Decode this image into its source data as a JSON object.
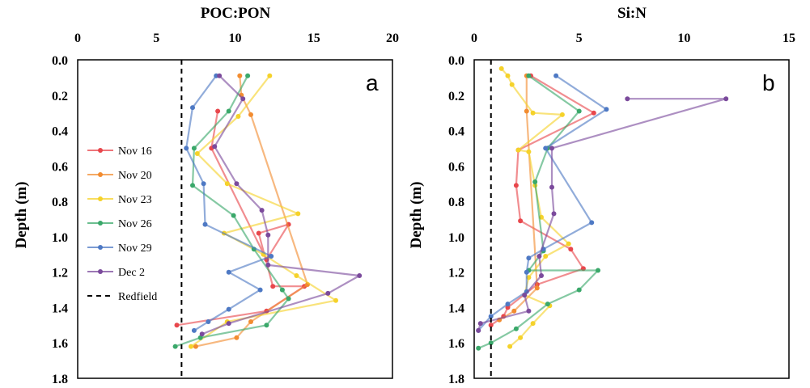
{
  "chart_data": [
    {
      "type": "line",
      "panel": "a",
      "title": "POC:PON",
      "xlabel": "",
      "ylabel": "Depth (m)",
      "x_axis_position": "top",
      "y_axis_inverted": true,
      "xlim": [
        0,
        20
      ],
      "ylim": [
        0,
        1.8
      ],
      "xticks": [
        "0",
        "5",
        "10",
        "15",
        "20"
      ],
      "yticks": [
        "0.0",
        "0.2",
        "0.4",
        "0.6",
        "0.8",
        "1.0",
        "1.2",
        "1.4",
        "1.6",
        "1.8"
      ],
      "grid": false,
      "legend": {
        "position": "left",
        "entries": [
          "Nov 16",
          "Nov 20",
          "Nov 23",
          "Nov 26",
          "Nov 29",
          "Dec 2",
          "Redfield"
        ]
      },
      "reference_line": {
        "name": "Redfield",
        "x": 6.6,
        "style": "dashed"
      },
      "series": [
        {
          "name": "Nov 16",
          "color": "#e8474c",
          "points": [
            [
              8.9,
              0.29
            ],
            [
              8.5,
              0.5
            ],
            [
              12.0,
              1.13
            ],
            [
              13.4,
              0.93
            ],
            [
              11.5,
              0.98
            ],
            [
              12.4,
              1.28
            ],
            [
              14.4,
              1.28
            ],
            [
              12.0,
              1.42
            ],
            [
              6.3,
              1.5
            ]
          ]
        },
        {
          "name": "Nov 20",
          "color": "#f28c30",
          "points": [
            [
              10.3,
              0.09
            ],
            [
              10.4,
              0.2
            ],
            [
              11.0,
              0.31
            ],
            [
              14.6,
              1.27
            ],
            [
              11.0,
              1.48
            ],
            [
              10.1,
              1.57
            ],
            [
              7.5,
              1.62
            ]
          ]
        },
        {
          "name": "Nov 23",
          "color": "#f5d22a",
          "points": [
            [
              12.2,
              0.09
            ],
            [
              10.2,
              0.32
            ],
            [
              7.6,
              0.53
            ],
            [
              9.5,
              0.7
            ],
            [
              14.0,
              0.87
            ],
            [
              9.3,
              0.98
            ],
            [
              11.8,
              1.1
            ],
            [
              13.9,
              1.22
            ],
            [
              16.4,
              1.36
            ],
            [
              9.5,
              1.48
            ],
            [
              7.2,
              1.62
            ]
          ]
        },
        {
          "name": "Nov 26",
          "color": "#3aa86a",
          "points": [
            [
              10.8,
              0.09
            ],
            [
              9.6,
              0.29
            ],
            [
              7.4,
              0.5
            ],
            [
              7.3,
              0.71
            ],
            [
              9.9,
              0.88
            ],
            [
              11.2,
              1.07
            ],
            [
              13.0,
              1.3
            ],
            [
              13.4,
              1.35
            ],
            [
              12.0,
              1.5
            ],
            [
              7.8,
              1.57
            ],
            [
              6.2,
              1.62
            ]
          ]
        },
        {
          "name": "Nov 29",
          "color": "#4e79c4",
          "points": [
            [
              8.8,
              0.09
            ],
            [
              7.3,
              0.27
            ],
            [
              6.9,
              0.5
            ],
            [
              8.0,
              0.7
            ],
            [
              8.1,
              0.93
            ],
            [
              12.3,
              1.11
            ],
            [
              9.6,
              1.2
            ],
            [
              11.6,
              1.3
            ],
            [
              9.6,
              1.41
            ],
            [
              8.3,
              1.48
            ],
            [
              7.4,
              1.53
            ]
          ]
        },
        {
          "name": "Dec 2",
          "color": "#7b4a9c",
          "points": [
            [
              9.0,
              0.09
            ],
            [
              10.5,
              0.22
            ],
            [
              8.7,
              0.49
            ],
            [
              10.1,
              0.7
            ],
            [
              11.7,
              0.85
            ],
            [
              12.1,
              0.99
            ],
            [
              12.1,
              1.16
            ],
            [
              17.9,
              1.22
            ],
            [
              15.9,
              1.32
            ],
            [
              9.6,
              1.49
            ],
            [
              7.9,
              1.55
            ]
          ]
        }
      ],
      "annotation": "a"
    },
    {
      "type": "line",
      "panel": "b",
      "title": "Si:N",
      "xlabel": "",
      "ylabel": "Depth (m)",
      "x_axis_position": "top",
      "y_axis_inverted": true,
      "xlim": [
        0,
        15
      ],
      "ylim": [
        0,
        1.8
      ],
      "xticks": [
        "0",
        "5",
        "10",
        "15"
      ],
      "yticks": [
        "0.0",
        "0.2",
        "0.4",
        "0.6",
        "0.8",
        "1.0",
        "1.2",
        "1.4",
        "1.6",
        "1.8"
      ],
      "grid": false,
      "reference_line": {
        "name": "Redfield",
        "x": 0.8,
        "style": "dashed"
      },
      "series": [
        {
          "name": "Nov 16",
          "color": "#e8474c",
          "points": [
            [
              2.7,
              0.09
            ],
            [
              5.7,
              0.3
            ],
            [
              2.1,
              0.51
            ],
            [
              2.0,
              0.71
            ],
            [
              2.2,
              0.91
            ],
            [
              4.6,
              1.07
            ],
            [
              5.2,
              1.18
            ],
            [
              3.0,
              1.27
            ],
            [
              1.6,
              1.4
            ],
            [
              1.4,
              1.45
            ],
            [
              0.8,
              1.5
            ]
          ]
        },
        {
          "name": "Nov 20",
          "color": "#f28c30",
          "points": [
            [
              2.5,
              0.09
            ],
            [
              2.5,
              0.29
            ],
            [
              3.0,
              1.29
            ],
            [
              1.9,
              1.42
            ],
            [
              1.2,
              1.47
            ]
          ]
        },
        {
          "name": "Nov 23",
          "color": "#f5d22a",
          "points": [
            [
              1.3,
              0.05
            ],
            [
              1.6,
              0.09
            ],
            [
              1.8,
              0.14
            ],
            [
              2.8,
              0.3
            ],
            [
              4.2,
              0.31
            ],
            [
              2.1,
              0.51
            ],
            [
              2.6,
              0.52
            ],
            [
              2.9,
              0.71
            ],
            [
              3.2,
              0.89
            ],
            [
              4.5,
              1.04
            ],
            [
              3.4,
              1.11
            ],
            [
              2.6,
              1.23
            ],
            [
              2.4,
              1.33
            ],
            [
              3.6,
              1.39
            ],
            [
              2.8,
              1.49
            ],
            [
              2.2,
              1.57
            ],
            [
              1.7,
              1.62
            ]
          ]
        },
        {
          "name": "Nov 26",
          "color": "#3aa86a",
          "points": [
            [
              2.6,
              0.09
            ],
            [
              5.0,
              0.29
            ],
            [
              3.5,
              0.5
            ],
            [
              2.9,
              0.69
            ],
            [
              3.3,
              1.08
            ],
            [
              2.6,
              1.19
            ],
            [
              5.9,
              1.19
            ],
            [
              5.0,
              1.3
            ],
            [
              3.5,
              1.38
            ],
            [
              2.0,
              1.52
            ],
            [
              0.8,
              1.6
            ],
            [
              0.2,
              1.63
            ]
          ]
        },
        {
          "name": "Nov 29",
          "color": "#4e79c4",
          "points": [
            [
              3.9,
              0.09
            ],
            [
              6.3,
              0.28
            ],
            [
              3.4,
              0.5
            ],
            [
              5.6,
              0.92
            ],
            [
              3.3,
              1.07
            ],
            [
              2.6,
              1.12
            ],
            [
              2.5,
              1.2
            ],
            [
              2.5,
              1.31
            ],
            [
              1.6,
              1.38
            ],
            [
              0.8,
              1.45
            ],
            [
              0.2,
              1.53
            ]
          ]
        },
        {
          "name": "Dec 2",
          "color": "#7b4a9c",
          "points": [
            [
              7.3,
              0.22
            ],
            [
              12.0,
              0.22
            ],
            [
              3.7,
              0.5
            ],
            [
              3.7,
              0.72
            ],
            [
              3.8,
              0.87
            ],
            [
              3.1,
              1.11
            ],
            [
              3.2,
              1.22
            ],
            [
              2.4,
              1.33
            ],
            [
              2.6,
              1.42
            ],
            [
              0.3,
              1.49
            ],
            [
              0.2,
              1.53
            ]
          ]
        }
      ],
      "annotation": "b"
    }
  ]
}
